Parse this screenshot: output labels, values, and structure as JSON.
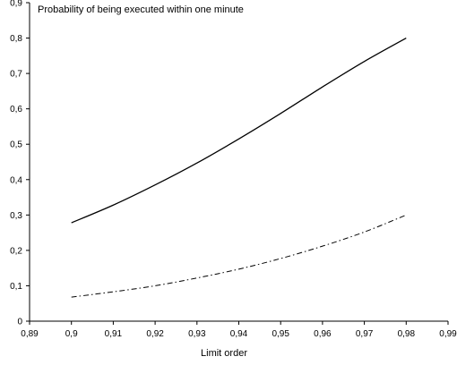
{
  "chart_data": {
    "type": "line",
    "title": "",
    "ylabel": "Probability of being executed within one minute",
    "xlabel": "Limit order",
    "xlim": [
      0.89,
      0.99
    ],
    "ylim": [
      0,
      0.9
    ],
    "grid": false,
    "legend": "none",
    "x_ticks": [
      "0,89",
      "0,9",
      "0,91",
      "0,92",
      "0,93",
      "0,94",
      "0,95",
      "0,96",
      "0,97",
      "0,98",
      "0,99"
    ],
    "y_ticks": [
      "0",
      "0,1",
      "0,2",
      "0,3",
      "0,4",
      "0,5",
      "0,6",
      "0,7",
      "0,8",
      "0,9"
    ],
    "x": [
      0.9,
      0.91,
      0.92,
      0.93,
      0.94,
      0.95,
      0.96,
      0.97,
      0.98
    ],
    "series": [
      {
        "style": "solid",
        "color": "#000000",
        "values": [
          0.278,
          0.328,
          0.385,
          0.447,
          0.515,
          0.587,
          0.662,
          0.734,
          0.8
        ]
      },
      {
        "style": "dash-dot",
        "color": "#000000",
        "values": [
          0.068,
          0.083,
          0.1,
          0.122,
          0.147,
          0.177,
          0.212,
          0.252,
          0.3
        ]
      }
    ]
  }
}
